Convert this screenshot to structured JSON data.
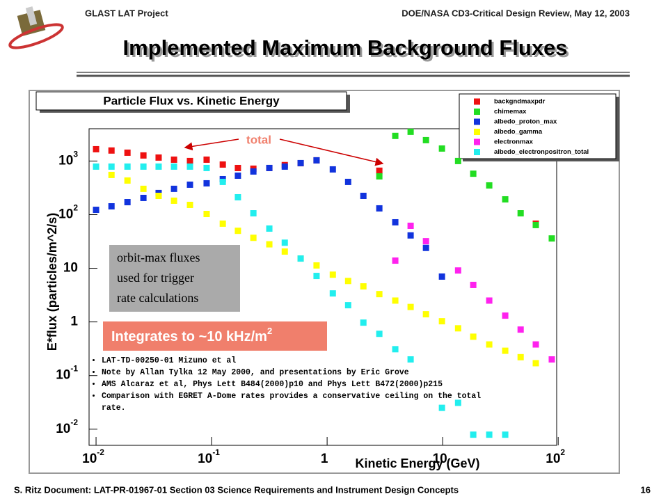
{
  "slide": {
    "header_left": "GLAST LAT Project",
    "header_right": "DOE/NASA CD3-Critical Design Review, May 12, 2003",
    "title": "Implemented Maximum Background Fluxes",
    "footer_left": "S. Ritz  Document: LAT-PR-01967-01   Section 03 Science Requirements and Instrument Design Concepts",
    "page_number": "16"
  },
  "chart_data": {
    "type": "scatter",
    "title": "Particle Flux vs. Kinetic Energy",
    "x_label": "Kinetic Energy (GeV)",
    "y_label": "E*flux (particles/m^2/s)",
    "log_x": true,
    "log_y": true,
    "xlim": [
      0.0087,
      97
    ],
    "ylim": [
      0.005,
      4000
    ],
    "xticks": [
      {
        "value": 0.01,
        "label": "10",
        "exponent": "-2"
      },
      {
        "value": 0.1,
        "label": "10",
        "exponent": "-1"
      },
      1,
      10,
      {
        "value": 100,
        "label": "10",
        "exponent": "2"
      }
    ],
    "yticks": [
      {
        "value": 0.01,
        "label": "10",
        "exponent": "-2"
      },
      {
        "value": 0.1,
        "label": "10",
        "exponent": "-1"
      },
      1,
      10,
      {
        "value": 100,
        "label": "10",
        "exponent": "2"
      },
      {
        "value": 1000,
        "label": "10",
        "exponent": "3"
      }
    ],
    "legend": "top-right",
    "series": [
      {
        "name": "backgndmaxpdr",
        "color": "#ee1111",
        "x": [
          0.01,
          0.0136,
          0.0187,
          0.0257,
          0.0348,
          0.0473,
          0.065,
          0.0906,
          0.125,
          0.169,
          0.23,
          0.316,
          0.43,
          0.59,
          0.81,
          2.83,
          64
        ],
        "values": [
          1660,
          1570,
          1430,
          1270,
          1160,
          1060,
          1000,
          1060,
          860,
          740,
          720,
          740,
          840,
          910,
          1030,
          660,
          68
        ]
      },
      {
        "name": "chimemax",
        "color": "#22dd22",
        "x": [
          2.83,
          3.89,
          5.28,
          7.17,
          9.86,
          13.6,
          18.4,
          25.3,
          34.8,
          47.3,
          64,
          88
        ],
        "values": [
          518,
          2940,
          3510,
          2450,
          1710,
          1000,
          580,
          351,
          193,
          106,
          64,
          36
        ]
      },
      {
        "name": "albedo_proton_max",
        "color": "#1133dd",
        "x": [
          0.01,
          0.0136,
          0.0187,
          0.0257,
          0.0348,
          0.0473,
          0.065,
          0.0906,
          0.125,
          0.169,
          0.23,
          0.316,
          0.43,
          0.59,
          0.81,
          1.12,
          1.52,
          2.06,
          2.83,
          3.89,
          5.28,
          7.17,
          9.86
        ],
        "values": [
          123,
          143,
          171,
          205,
          253,
          303,
          362,
          384,
          459,
          533,
          638,
          741,
          787,
          914,
          1030,
          698,
          408,
          224,
          131,
          72,
          41,
          24,
          7
        ]
      },
      {
        "name": "albedo_gamma",
        "color": "#ffff00",
        "x": [
          0.0136,
          0.0187,
          0.0257,
          0.0348,
          0.0473,
          0.065,
          0.0906,
          0.125,
          0.169,
          0.23,
          0.316,
          0.43,
          0.59,
          0.81,
          1.12,
          1.52,
          2.06,
          2.83,
          3.89,
          5.28,
          7.17,
          9.86,
          13.6,
          18.4,
          25.3,
          34.8,
          47.3,
          64
        ],
        "values": [
          550,
          433,
          303,
          224,
          182,
          152,
          103,
          68,
          50,
          37,
          28,
          20.5,
          15.2,
          11.3,
          7.6,
          5.8,
          4.6,
          3.3,
          2.5,
          1.9,
          1.39,
          1.03,
          0.76,
          0.53,
          0.38,
          0.29,
          0.22,
          0.17
        ]
      },
      {
        "name": "electronmax",
        "color": "#ff22ee",
        "x": [
          3.89,
          5.28,
          7.17,
          13.6,
          18.4,
          25.3,
          34.8,
          47.3,
          64,
          88
        ],
        "values": [
          13.9,
          62,
          32,
          9.1,
          4.9,
          2.5,
          1.31,
          0.72,
          0.38,
          0.2
        ]
      },
      {
        "name": "albedo_electronpositron_total",
        "color": "#22eeee",
        "x": [
          0.01,
          0.0136,
          0.0187,
          0.0257,
          0.0348,
          0.0473,
          0.065,
          0.0906,
          0.125,
          0.169,
          0.23,
          0.316,
          0.43,
          0.59,
          0.81,
          1.12,
          1.52,
          2.06,
          2.83,
          3.89,
          5.28,
          9.86,
          13.6,
          18.4,
          25.3,
          34.8
        ],
        "values": [
          787,
          787,
          787,
          787,
          787,
          787,
          787,
          741,
          408,
          211,
          106,
          55,
          30,
          15.2,
          7.2,
          3.4,
          2.05,
          0.97,
          0.6,
          0.31,
          0.2,
          0.025,
          0.031,
          0.0079,
          0.0079,
          0.0079
        ]
      }
    ],
    "annotations": {
      "total": "total",
      "gray_box": [
        "orbit-max fluxes",
        "used for trigger",
        "rate calculations"
      ],
      "integrates": {
        "text": "Integrates to ~10 kHz/m",
        "exponent": "2"
      },
      "references": [
        "LAT-TD-00250-01 Mizuno et al",
        "Note by Allan Tylka 12 May 2000, and presentations by Eric Grove",
        "AMS Alcaraz et al, Phys Lett B484(2000)p10 and Phys Lett B472(2000)p215",
        "Comparison with EGRET A-Dome rates provides a conservative ceiling on the total rate."
      ]
    }
  }
}
